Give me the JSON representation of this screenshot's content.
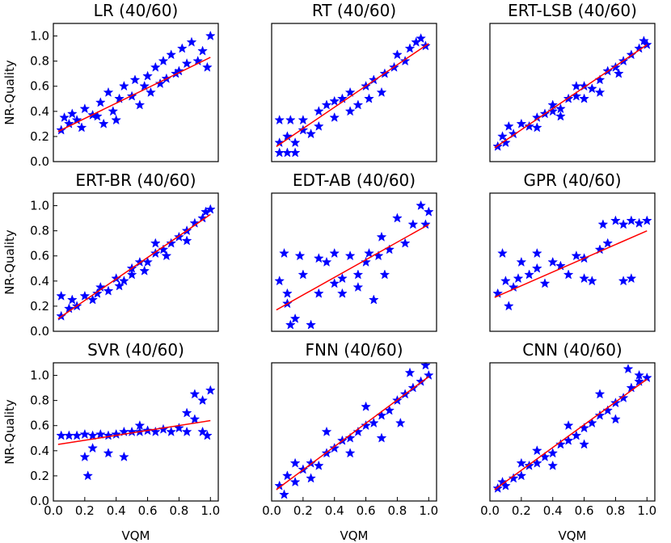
{
  "chart_data": [
    {
      "type": "scatter",
      "title": "LR (40/60)",
      "xlabel": "",
      "ylabel": "NR-Quality",
      "xlim": [
        0,
        1.05
      ],
      "ylim": [
        0,
        1.1
      ],
      "xticks": [],
      "yticks": [
        0.0,
        0.2,
        0.4,
        0.6,
        0.8,
        1.0
      ],
      "ytick_labels": [
        "0.0",
        "0.2",
        "0.4",
        "0.6",
        "0.8",
        "1.0"
      ],
      "fit_line": [
        [
          0.03,
          0.24
        ],
        [
          1.0,
          0.83
        ]
      ],
      "marker_color": "#0000ff",
      "line_color": "#ff0000",
      "points": [
        [
          0.05,
          0.25
        ],
        [
          0.1,
          0.3
        ],
        [
          0.12,
          0.38
        ],
        [
          0.15,
          0.33
        ],
        [
          0.2,
          0.42
        ],
        [
          0.25,
          0.37
        ],
        [
          0.3,
          0.47
        ],
        [
          0.32,
          0.3
        ],
        [
          0.35,
          0.55
        ],
        [
          0.38,
          0.4
        ],
        [
          0.42,
          0.5
        ],
        [
          0.45,
          0.6
        ],
        [
          0.5,
          0.52
        ],
        [
          0.52,
          0.65
        ],
        [
          0.55,
          0.45
        ],
        [
          0.6,
          0.68
        ],
        [
          0.62,
          0.55
        ],
        [
          0.65,
          0.75
        ],
        [
          0.68,
          0.62
        ],
        [
          0.7,
          0.8
        ],
        [
          0.72,
          0.66
        ],
        [
          0.75,
          0.85
        ],
        [
          0.8,
          0.72
        ],
        [
          0.82,
          0.9
        ],
        [
          0.85,
          0.78
        ],
        [
          0.88,
          0.95
        ],
        [
          0.92,
          0.8
        ],
        [
          0.95,
          0.88
        ],
        [
          0.98,
          0.75
        ],
        [
          1.0,
          1.0
        ],
        [
          0.07,
          0.35
        ],
        [
          0.18,
          0.27
        ],
        [
          0.28,
          0.36
        ],
        [
          0.4,
          0.33
        ],
        [
          0.58,
          0.6
        ],
        [
          0.78,
          0.7
        ]
      ]
    },
    {
      "type": "scatter",
      "title": "RT (40/60)",
      "xlabel": "",
      "ylabel": "",
      "xlim": [
        0,
        1.05
      ],
      "ylim": [
        0,
        1.1
      ],
      "xticks": [],
      "yticks": [],
      "ytick_labels": [],
      "fit_line": [
        [
          0.03,
          0.12
        ],
        [
          1.0,
          0.94
        ]
      ],
      "marker_color": "#0000ff",
      "line_color": "#ff0000",
      "points": [
        [
          0.05,
          0.07
        ],
        [
          0.1,
          0.07
        ],
        [
          0.15,
          0.07
        ],
        [
          0.05,
          0.15
        ],
        [
          0.1,
          0.2
        ],
        [
          0.15,
          0.15
        ],
        [
          0.05,
          0.33
        ],
        [
          0.12,
          0.33
        ],
        [
          0.2,
          0.33
        ],
        [
          0.25,
          0.22
        ],
        [
          0.3,
          0.4
        ],
        [
          0.35,
          0.45
        ],
        [
          0.4,
          0.35
        ],
        [
          0.45,
          0.5
        ],
        [
          0.5,
          0.55
        ],
        [
          0.55,
          0.45
        ],
        [
          0.6,
          0.6
        ],
        [
          0.65,
          0.65
        ],
        [
          0.7,
          0.55
        ],
        [
          0.72,
          0.7
        ],
        [
          0.78,
          0.75
        ],
        [
          0.8,
          0.85
        ],
        [
          0.85,
          0.8
        ],
        [
          0.88,
          0.9
        ],
        [
          0.92,
          0.95
        ],
        [
          0.95,
          0.98
        ],
        [
          0.98,
          0.92
        ],
        [
          0.5,
          0.4
        ],
        [
          0.62,
          0.5
        ],
        [
          0.3,
          0.28
        ],
        [
          0.2,
          0.25
        ],
        [
          0.4,
          0.48
        ]
      ]
    },
    {
      "type": "scatter",
      "title": "ERT-LSB (40/60)",
      "xlabel": "",
      "ylabel": "",
      "xlim": [
        0,
        1.05
      ],
      "ylim": [
        0,
        1.1
      ],
      "xticks": [],
      "yticks": [],
      "ytick_labels": [],
      "fit_line": [
        [
          0.03,
          0.11
        ],
        [
          1.0,
          0.93
        ]
      ],
      "marker_color": "#0000ff",
      "line_color": "#ff0000",
      "points": [
        [
          0.05,
          0.12
        ],
        [
          0.08,
          0.2
        ],
        [
          0.1,
          0.15
        ],
        [
          0.12,
          0.28
        ],
        [
          0.15,
          0.22
        ],
        [
          0.2,
          0.3
        ],
        [
          0.25,
          0.28
        ],
        [
          0.3,
          0.35
        ],
        [
          0.35,
          0.38
        ],
        [
          0.4,
          0.45
        ],
        [
          0.45,
          0.42
        ],
        [
          0.5,
          0.5
        ],
        [
          0.55,
          0.52
        ],
        [
          0.6,
          0.6
        ],
        [
          0.65,
          0.58
        ],
        [
          0.7,
          0.65
        ],
        [
          0.75,
          0.72
        ],
        [
          0.8,
          0.75
        ],
        [
          0.85,
          0.8
        ],
        [
          0.9,
          0.85
        ],
        [
          0.95,
          0.9
        ],
        [
          0.98,
          0.96
        ],
        [
          1.0,
          0.93
        ],
        [
          0.7,
          0.55
        ],
        [
          0.6,
          0.5
        ],
        [
          0.45,
          0.36
        ],
        [
          0.3,
          0.27
        ],
        [
          0.82,
          0.7
        ],
        [
          0.55,
          0.6
        ],
        [
          0.4,
          0.4
        ]
      ]
    },
    {
      "type": "scatter",
      "title": "ERT-BR (40/60)",
      "xlabel": "",
      "ylabel": "NR-Quality",
      "xlim": [
        0,
        1.05
      ],
      "ylim": [
        0,
        1.1
      ],
      "xticks": [],
      "yticks": [
        0.0,
        0.2,
        0.4,
        0.6,
        0.8,
        1.0
      ],
      "ytick_labels": [
        "0.0",
        "0.2",
        "0.4",
        "0.6",
        "0.8",
        "1.0"
      ],
      "fit_line": [
        [
          0.03,
          0.1
        ],
        [
          1.0,
          0.93
        ]
      ],
      "marker_color": "#0000ff",
      "line_color": "#ff0000",
      "points": [
        [
          0.05,
          0.12
        ],
        [
          0.05,
          0.28
        ],
        [
          0.1,
          0.18
        ],
        [
          0.12,
          0.25
        ],
        [
          0.15,
          0.2
        ],
        [
          0.2,
          0.28
        ],
        [
          0.25,
          0.25
        ],
        [
          0.3,
          0.35
        ],
        [
          0.35,
          0.32
        ],
        [
          0.4,
          0.42
        ],
        [
          0.45,
          0.4
        ],
        [
          0.5,
          0.5
        ],
        [
          0.55,
          0.55
        ],
        [
          0.6,
          0.55
        ],
        [
          0.65,
          0.62
        ],
        [
          0.7,
          0.65
        ],
        [
          0.75,
          0.7
        ],
        [
          0.8,
          0.75
        ],
        [
          0.85,
          0.8
        ],
        [
          0.9,
          0.86
        ],
        [
          0.95,
          0.9
        ],
        [
          1.0,
          0.97
        ],
        [
          0.97,
          0.95
        ],
        [
          0.72,
          0.6
        ],
        [
          0.58,
          0.48
        ],
        [
          0.42,
          0.36
        ],
        [
          0.28,
          0.3
        ],
        [
          0.85,
          0.72
        ],
        [
          0.65,
          0.7
        ],
        [
          0.5,
          0.45
        ]
      ]
    },
    {
      "type": "scatter",
      "title": "EDT-AB (40/60)",
      "xlabel": "",
      "ylabel": "",
      "xlim": [
        0,
        1.05
      ],
      "ylim": [
        0,
        1.1
      ],
      "xticks": [],
      "yticks": [],
      "ytick_labels": [],
      "fit_line": [
        [
          0.03,
          0.17
        ],
        [
          1.0,
          0.85
        ]
      ],
      "marker_color": "#0000ff",
      "line_color": "#ff0000",
      "points": [
        [
          0.05,
          0.4
        ],
        [
          0.1,
          0.3
        ],
        [
          0.12,
          0.05
        ],
        [
          0.15,
          0.1
        ],
        [
          0.2,
          0.45
        ],
        [
          0.25,
          0.05
        ],
        [
          0.3,
          0.3
        ],
        [
          0.35,
          0.55
        ],
        [
          0.4,
          0.38
        ],
        [
          0.45,
          0.42
        ],
        [
          0.5,
          0.6
        ],
        [
          0.55,
          0.45
        ],
        [
          0.6,
          0.55
        ],
        [
          0.65,
          0.25
        ],
        [
          0.68,
          0.6
        ],
        [
          0.7,
          0.75
        ],
        [
          0.75,
          0.65
        ],
        [
          0.8,
          0.9
        ],
        [
          0.85,
          0.7
        ],
        [
          0.9,
          0.85
        ],
        [
          0.95,
          1.0
        ],
        [
          1.0,
          0.95
        ],
        [
          0.98,
          0.85
        ],
        [
          0.08,
          0.62
        ],
        [
          0.18,
          0.6
        ],
        [
          0.3,
          0.58
        ],
        [
          0.45,
          0.3
        ],
        [
          0.55,
          0.35
        ],
        [
          0.62,
          0.62
        ],
        [
          0.72,
          0.45
        ],
        [
          0.1,
          0.22
        ],
        [
          0.4,
          0.62
        ]
      ]
    },
    {
      "type": "scatter",
      "title": "GPR (40/60)",
      "xlabel": "",
      "ylabel": "",
      "xlim": [
        0,
        1.05
      ],
      "ylim": [
        0,
        1.1
      ],
      "xticks": [],
      "yticks": [],
      "ytick_labels": [],
      "fit_line": [
        [
          0.03,
          0.27
        ],
        [
          1.0,
          0.8
        ]
      ],
      "marker_color": "#0000ff",
      "line_color": "#ff0000",
      "points": [
        [
          0.05,
          0.3
        ],
        [
          0.08,
          0.62
        ],
        [
          0.1,
          0.4
        ],
        [
          0.12,
          0.2
        ],
        [
          0.15,
          0.35
        ],
        [
          0.2,
          0.55
        ],
        [
          0.25,
          0.45
        ],
        [
          0.3,
          0.5
        ],
        [
          0.35,
          0.38
        ],
        [
          0.4,
          0.55
        ],
        [
          0.45,
          0.52
        ],
        [
          0.5,
          0.45
        ],
        [
          0.55,
          0.6
        ],
        [
          0.6,
          0.58
        ],
        [
          0.65,
          0.4
        ],
        [
          0.7,
          0.65
        ],
        [
          0.72,
          0.85
        ],
        [
          0.75,
          0.7
        ],
        [
          0.8,
          0.88
        ],
        [
          0.85,
          0.85
        ],
        [
          0.9,
          0.88
        ],
        [
          0.95,
          0.86
        ],
        [
          1.0,
          0.88
        ],
        [
          0.85,
          0.4
        ],
        [
          0.9,
          0.42
        ],
        [
          0.6,
          0.42
        ],
        [
          0.3,
          0.62
        ],
        [
          0.18,
          0.42
        ]
      ]
    },
    {
      "type": "scatter",
      "title": "SVR (40/60)",
      "xlabel": "VQM",
      "ylabel": "NR-Quality",
      "xlim": [
        0,
        1.05
      ],
      "ylim": [
        0,
        1.1
      ],
      "xticks": [
        0.0,
        0.2,
        0.4,
        0.6,
        0.8,
        1.0
      ],
      "xtick_labels": [
        "0.0",
        "0.2",
        "0.4",
        "0.6",
        "0.8",
        "1.0"
      ],
      "yticks": [
        0.0,
        0.2,
        0.4,
        0.6,
        0.8,
        1.0
      ],
      "ytick_labels": [
        "0.0",
        "0.2",
        "0.4",
        "0.6",
        "0.8",
        "1.0"
      ],
      "fit_line": [
        [
          0.03,
          0.45
        ],
        [
          1.0,
          0.64
        ]
      ],
      "marker_color": "#0000ff",
      "line_color": "#ff0000",
      "points": [
        [
          0.05,
          0.52
        ],
        [
          0.1,
          0.52
        ],
        [
          0.15,
          0.52
        ],
        [
          0.2,
          0.53
        ],
        [
          0.25,
          0.52
        ],
        [
          0.3,
          0.53
        ],
        [
          0.35,
          0.52
        ],
        [
          0.4,
          0.53
        ],
        [
          0.45,
          0.55
        ],
        [
          0.5,
          0.55
        ],
        [
          0.55,
          0.55
        ],
        [
          0.6,
          0.56
        ],
        [
          0.65,
          0.55
        ],
        [
          0.7,
          0.57
        ],
        [
          0.75,
          0.55
        ],
        [
          0.8,
          0.58
        ],
        [
          0.85,
          0.7
        ],
        [
          0.9,
          0.65
        ],
        [
          0.95,
          0.8
        ],
        [
          1.0,
          0.88
        ],
        [
          0.98,
          0.52
        ],
        [
          0.22,
          0.2
        ],
        [
          0.2,
          0.35
        ],
        [
          0.35,
          0.38
        ],
        [
          0.45,
          0.35
        ],
        [
          0.55,
          0.6
        ],
        [
          0.85,
          0.55
        ],
        [
          0.95,
          0.55
        ],
        [
          0.9,
          0.85
        ],
        [
          0.25,
          0.42
        ]
      ]
    },
    {
      "type": "scatter",
      "title": "FNN (40/60)",
      "xlabel": "VQM",
      "ylabel": "",
      "xlim": [
        0,
        1.05
      ],
      "ylim": [
        0,
        1.1
      ],
      "xticks": [
        0.0,
        0.2,
        0.4,
        0.6,
        0.8,
        1.0
      ],
      "xtick_labels": [
        "0.0",
        "0.2",
        "0.4",
        "0.6",
        "0.8",
        "1.0"
      ],
      "yticks": [],
      "ytick_labels": [],
      "fit_line": [
        [
          0.03,
          0.09
        ],
        [
          1.0,
          0.99
        ]
      ],
      "marker_color": "#0000ff",
      "line_color": "#ff0000",
      "points": [
        [
          0.05,
          0.12
        ],
        [
          0.08,
          0.05
        ],
        [
          0.1,
          0.2
        ],
        [
          0.15,
          0.15
        ],
        [
          0.2,
          0.25
        ],
        [
          0.25,
          0.3
        ],
        [
          0.3,
          0.28
        ],
        [
          0.35,
          0.38
        ],
        [
          0.4,
          0.42
        ],
        [
          0.45,
          0.48
        ],
        [
          0.5,
          0.5
        ],
        [
          0.55,
          0.55
        ],
        [
          0.6,
          0.6
        ],
        [
          0.65,
          0.62
        ],
        [
          0.7,
          0.68
        ],
        [
          0.75,
          0.72
        ],
        [
          0.8,
          0.8
        ],
        [
          0.85,
          0.85
        ],
        [
          0.9,
          0.9
        ],
        [
          0.95,
          0.95
        ],
        [
          1.0,
          1.0
        ],
        [
          0.98,
          1.08
        ],
        [
          0.35,
          0.55
        ],
        [
          0.5,
          0.38
        ],
        [
          0.7,
          0.5
        ],
        [
          0.82,
          0.62
        ],
        [
          0.15,
          0.3
        ],
        [
          0.6,
          0.75
        ],
        [
          0.88,
          1.02
        ],
        [
          0.25,
          0.18
        ]
      ]
    },
    {
      "type": "scatter",
      "title": "CNN (40/60)",
      "xlabel": "VQM",
      "ylabel": "",
      "xlim": [
        0,
        1.05
      ],
      "ylim": [
        0,
        1.1
      ],
      "xticks": [
        0.0,
        0.2,
        0.4,
        0.6,
        0.8,
        1.0
      ],
      "xtick_labels": [
        "0.0",
        "0.2",
        "0.4",
        "0.6",
        "0.8",
        "1.0"
      ],
      "yticks": [],
      "ytick_labels": [],
      "fit_line": [
        [
          0.03,
          0.09
        ],
        [
          1.0,
          0.97
        ]
      ],
      "marker_color": "#0000ff",
      "line_color": "#ff0000",
      "points": [
        [
          0.05,
          0.1
        ],
        [
          0.08,
          0.15
        ],
        [
          0.1,
          0.12
        ],
        [
          0.15,
          0.18
        ],
        [
          0.2,
          0.2
        ],
        [
          0.25,
          0.28
        ],
        [
          0.3,
          0.3
        ],
        [
          0.35,
          0.35
        ],
        [
          0.4,
          0.38
        ],
        [
          0.45,
          0.45
        ],
        [
          0.5,
          0.48
        ],
        [
          0.55,
          0.52
        ],
        [
          0.6,
          0.58
        ],
        [
          0.65,
          0.62
        ],
        [
          0.7,
          0.68
        ],
        [
          0.75,
          0.72
        ],
        [
          0.8,
          0.78
        ],
        [
          0.85,
          0.82
        ],
        [
          0.9,
          0.9
        ],
        [
          0.95,
          0.95
        ],
        [
          1.0,
          0.98
        ],
        [
          0.88,
          1.05
        ],
        [
          0.7,
          0.85
        ],
        [
          0.5,
          0.6
        ],
        [
          0.3,
          0.4
        ],
        [
          0.6,
          0.45
        ],
        [
          0.8,
          0.65
        ],
        [
          0.4,
          0.28
        ],
        [
          0.95,
          1.0
        ],
        [
          0.2,
          0.3
        ]
      ]
    }
  ]
}
